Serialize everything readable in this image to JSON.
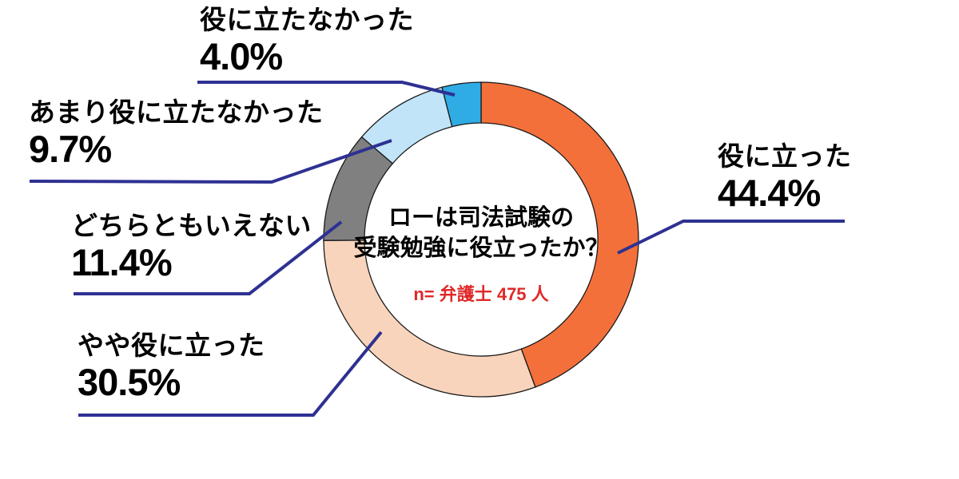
{
  "chart_data": {
    "type": "pie",
    "variant": "donut",
    "title": "ローは司法試験の受験勉強に役立ったか？",
    "center_title_lines": [
      "ローは司法試験の",
      "受験勉強に役立ったか？"
    ],
    "sample_note": "n= 弁護士 475 人",
    "sample_n": 475,
    "sample_group": "弁護士",
    "segments": [
      {
        "label": "役に立った",
        "value": 44.4,
        "pct_text": "44.4%",
        "color": "#F4703B"
      },
      {
        "label": "やや役に立った",
        "value": 30.5,
        "pct_text": "30.5%",
        "color": "#F9D4BC"
      },
      {
        "label": "どちらともいえない",
        "value": 11.4,
        "pct_text": "11.4%",
        "color": "#808080"
      },
      {
        "label": "あまり役に立たなかった",
        "value": 9.7,
        "pct_text": "9.7%",
        "color": "#C1E4F8"
      },
      {
        "label": "役に立たなかった",
        "value": 4.0,
        "pct_text": "4.0%",
        "color": "#2FACE4"
      }
    ],
    "start_angle_deg": 0,
    "direction": "clockwise",
    "donut_hole_ratio": 0.74,
    "legend": "none",
    "label_style": "callout-lines",
    "style": {
      "background": "#FFFFFF",
      "leader_color": "#2E3192",
      "outline_color": "#1A1A1A",
      "text_color": "#000000",
      "note_color": "#E02828"
    }
  }
}
